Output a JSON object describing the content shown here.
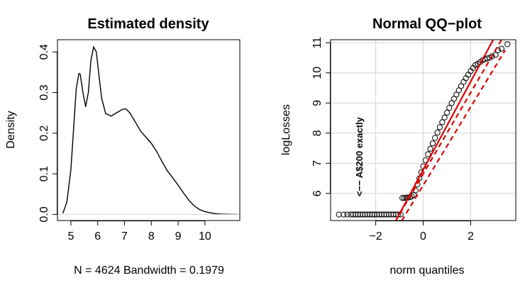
{
  "chart_data": [
    {
      "type": "line",
      "title": "Estimated density",
      "xlabel": "N = 4624   Bandwidth = 0.1979",
      "ylabel": "Density",
      "xlim": [
        4.5,
        11.3
      ],
      "ylim": [
        -0.015,
        0.43
      ],
      "xticks": [
        5,
        6,
        7,
        8,
        9,
        10
      ],
      "yticks": [
        0.0,
        0.1,
        0.2,
        0.3,
        0.4
      ],
      "xtick_labels": [
        "5",
        "6",
        "7",
        "8",
        "9",
        "10"
      ],
      "ytick_labels": [
        "0.0",
        "0.1",
        "0.2",
        "0.3",
        "0.4"
      ],
      "grid": false,
      "legend": "none",
      "series": [
        {
          "color": "#000000",
          "x": [
            4.7,
            4.85,
            5.0,
            5.1,
            5.2,
            5.3,
            5.35,
            5.45,
            5.55,
            5.65,
            5.75,
            5.85,
            5.95,
            6.05,
            6.15,
            6.3,
            6.5,
            6.7,
            6.9,
            7.05,
            7.2,
            7.4,
            7.6,
            7.8,
            8.0,
            8.2,
            8.4,
            8.6,
            8.8,
            9.0,
            9.2,
            9.4,
            9.6,
            9.8,
            10.0,
            10.2,
            10.4,
            10.6,
            10.8,
            11.0,
            11.2
          ],
          "y": [
            0.003,
            0.03,
            0.11,
            0.21,
            0.31,
            0.347,
            0.345,
            0.3,
            0.265,
            0.3,
            0.38,
            0.412,
            0.4,
            0.34,
            0.285,
            0.248,
            0.242,
            0.25,
            0.258,
            0.26,
            0.25,
            0.228,
            0.205,
            0.19,
            0.175,
            0.155,
            0.13,
            0.107,
            0.09,
            0.072,
            0.053,
            0.035,
            0.021,
            0.012,
            0.007,
            0.004,
            0.002,
            0.001,
            0.0005,
            0.0002,
            0.0001
          ]
        },
        {
          "color": "#d9d9d9",
          "x": [
            4.5,
            11.3
          ],
          "y": [
            0.0,
            0.0
          ]
        }
      ]
    },
    {
      "type": "scatter",
      "title": "Normal QQ−plot",
      "xlabel": "norm quantiles",
      "ylabel": "logLosses",
      "xlim": [
        -3.9,
        3.9
      ],
      "ylim": [
        5.1,
        11.1
      ],
      "xticks": [
        -2,
        0,
        2
      ],
      "yticks": [
        6,
        7,
        8,
        9,
        10,
        11
      ],
      "xtick_labels": [
        "−2",
        "0",
        "2"
      ],
      "ytick_labels": [
        "6",
        "7",
        "8",
        "9",
        "10",
        "11"
      ],
      "grid": true,
      "legend": "none",
      "annotation": {
        "text": "<−− A$200 exactly",
        "x": -2.55,
        "y": 5.9
      },
      "points": {
        "x": [
          -3.55,
          -3.35,
          -3.2,
          -3.05,
          -2.95,
          -2.85,
          -2.75,
          -2.65,
          -2.55,
          -2.45,
          -2.35,
          -2.25,
          -2.15,
          -2.05,
          -1.95,
          -1.85,
          -1.75,
          -1.65,
          -1.55,
          -1.45,
          -1.35,
          -1.25,
          -1.15,
          -1.05,
          -0.95,
          -0.88,
          -0.8,
          -0.72,
          -0.64,
          -0.56,
          -0.48,
          -0.4,
          -0.32,
          -0.24,
          -0.16,
          -0.08,
          0.0,
          0.1,
          0.2,
          0.3,
          0.4,
          0.5,
          0.6,
          0.7,
          0.8,
          0.9,
          1.0,
          1.1,
          1.2,
          1.3,
          1.4,
          1.5,
          1.6,
          1.7,
          1.8,
          1.9,
          2.0,
          2.1,
          2.2,
          2.3,
          2.4,
          2.5,
          2.6,
          2.7,
          2.8,
          2.9,
          3.05,
          3.15,
          3.3,
          3.55
        ],
        "y": [
          5.3,
          5.3,
          5.3,
          5.3,
          5.3,
          5.3,
          5.3,
          5.3,
          5.3,
          5.3,
          5.3,
          5.3,
          5.3,
          5.3,
          5.3,
          5.3,
          5.3,
          5.3,
          5.3,
          5.3,
          5.3,
          5.3,
          5.3,
          5.3,
          5.3,
          5.85,
          5.85,
          5.86,
          5.86,
          5.88,
          5.9,
          5.95,
          6.1,
          6.3,
          6.5,
          6.7,
          6.9,
          7.1,
          7.3,
          7.48,
          7.66,
          7.84,
          8.02,
          8.2,
          8.36,
          8.52,
          8.68,
          8.84,
          9.0,
          9.14,
          9.28,
          9.42,
          9.56,
          9.7,
          9.82,
          9.94,
          10.06,
          10.16,
          10.26,
          10.3,
          10.36,
          10.42,
          10.45,
          10.48,
          10.5,
          10.55,
          10.6,
          10.75,
          10.8,
          10.95
        ]
      },
      "lines": [
        {
          "style": "solid",
          "color": "#dd0000",
          "x": [
            -1.15,
            2.95
          ],
          "y": [
            5.1,
            11.1
          ]
        },
        {
          "style": "dashed",
          "color": "#dd0000",
          "x": [
            -1.15,
            3.3
          ],
          "y": [
            5.1,
            11.1
          ]
        },
        {
          "style": "dashed",
          "color": "#dd0000",
          "x": [
            -0.9,
            3.45
          ],
          "y": [
            5.1,
            10.75
          ]
        }
      ]
    }
  ]
}
